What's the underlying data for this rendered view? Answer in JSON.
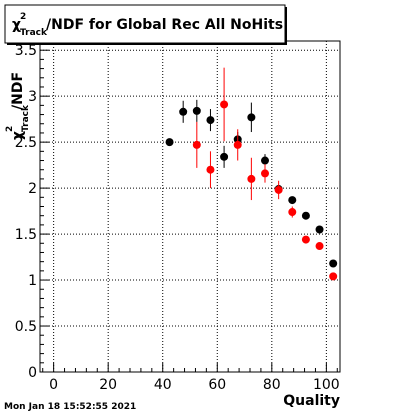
{
  "timestamp": "Mon Jan 18 15:52:55 2021",
  "chart_data": {
    "type": "scatter",
    "title_main": "/NDF for Global Rec All NoHits",
    "title_symbol": "χ",
    "title_sup": "2",
    "title_sub": "Track",
    "xlabel": "Quality",
    "ylabel_symbol": "χ",
    "ylabel_sup": "2",
    "ylabel_sub": "Track",
    "ylabel_main": "/NDF",
    "xlim": [
      -5,
      105
    ],
    "ylim": [
      0,
      3.6
    ],
    "xticks": [
      0,
      20,
      40,
      60,
      80,
      100
    ],
    "xtick_labels": [
      "0",
      "20",
      "40",
      "60",
      "80",
      "100"
    ],
    "yticks": [
      0,
      0.5,
      1,
      1.5,
      2,
      2.5,
      3,
      3.5
    ],
    "ytick_labels": [
      "0",
      "0.5",
      "1",
      "1.5",
      "2",
      "2.5",
      "3",
      "3.5"
    ],
    "grid": true,
    "series": [
      {
        "color": "#000000",
        "x": [
          42.5,
          47.5,
          52.5,
          57.5,
          62.5,
          67.5,
          72.5,
          77.5,
          82.5,
          87.5,
          92.5,
          97.5,
          102.5
        ],
        "y": [
          2.5,
          2.83,
          2.84,
          2.74,
          2.34,
          2.53,
          2.77,
          2.3,
          1.99,
          1.87,
          1.7,
          1.55,
          1.18
        ],
        "yerr": [
          0.0,
          0.12,
          0.12,
          0.12,
          0.12,
          0.08,
          0.16,
          0.07,
          0.04,
          0.03,
          0.02,
          0.02,
          0.02
        ]
      },
      {
        "color": "#ff0000",
        "x": [
          52.5,
          57.5,
          62.5,
          67.5,
          72.5,
          77.5,
          82.5,
          87.5,
          92.5,
          97.5,
          102.5
        ],
        "y": [
          2.47,
          2.2,
          2.91,
          2.47,
          2.1,
          2.16,
          1.98,
          1.74,
          1.44,
          1.37,
          1.04
        ],
        "yerr": [
          0.25,
          0.2,
          0.4,
          0.17,
          0.23,
          0.1,
          0.1,
          0.06,
          0.03,
          0.02,
          0.02
        ]
      }
    ]
  }
}
